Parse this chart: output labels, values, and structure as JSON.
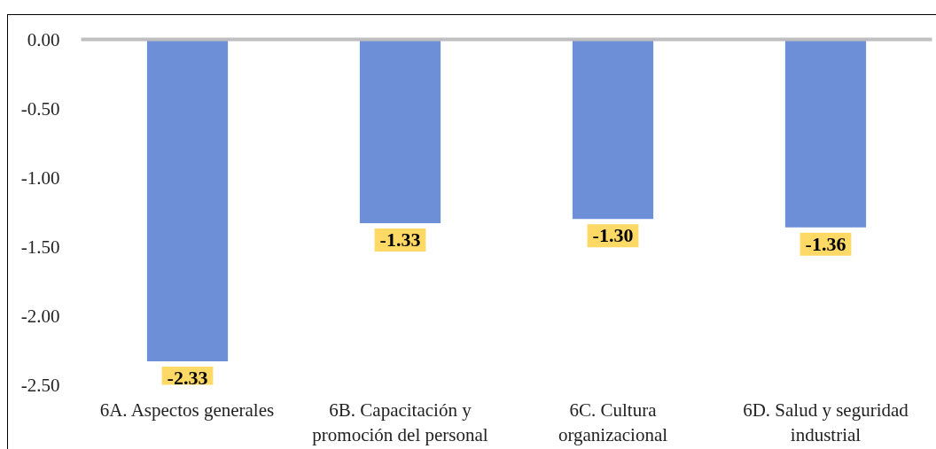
{
  "chart_data": {
    "type": "bar",
    "categories": [
      "6A. Aspectos generales",
      "6B. Capacitación y promoción del personal",
      "6C. Cultura organizacional",
      "6D. Salud y seguridad industrial"
    ],
    "values": [
      -2.33,
      -1.33,
      -1.3,
      -1.36
    ],
    "value_labels": [
      "-2.33",
      "-1.33",
      "-1.30",
      "-1.36"
    ],
    "color": "#6d8fd8",
    "ylim": [
      -2.5,
      0
    ],
    "yticks": [
      {
        "value": 0,
        "label": "0.00"
      },
      {
        "value": -0.5,
        "label": "-0.50"
      },
      {
        "value": -1,
        "label": "-1.00"
      },
      {
        "value": -1.5,
        "label": "-1.50"
      },
      {
        "value": -2,
        "label": "-2.00"
      },
      {
        "value": -2.5,
        "label": "-2.50"
      }
    ],
    "grid": false
  }
}
